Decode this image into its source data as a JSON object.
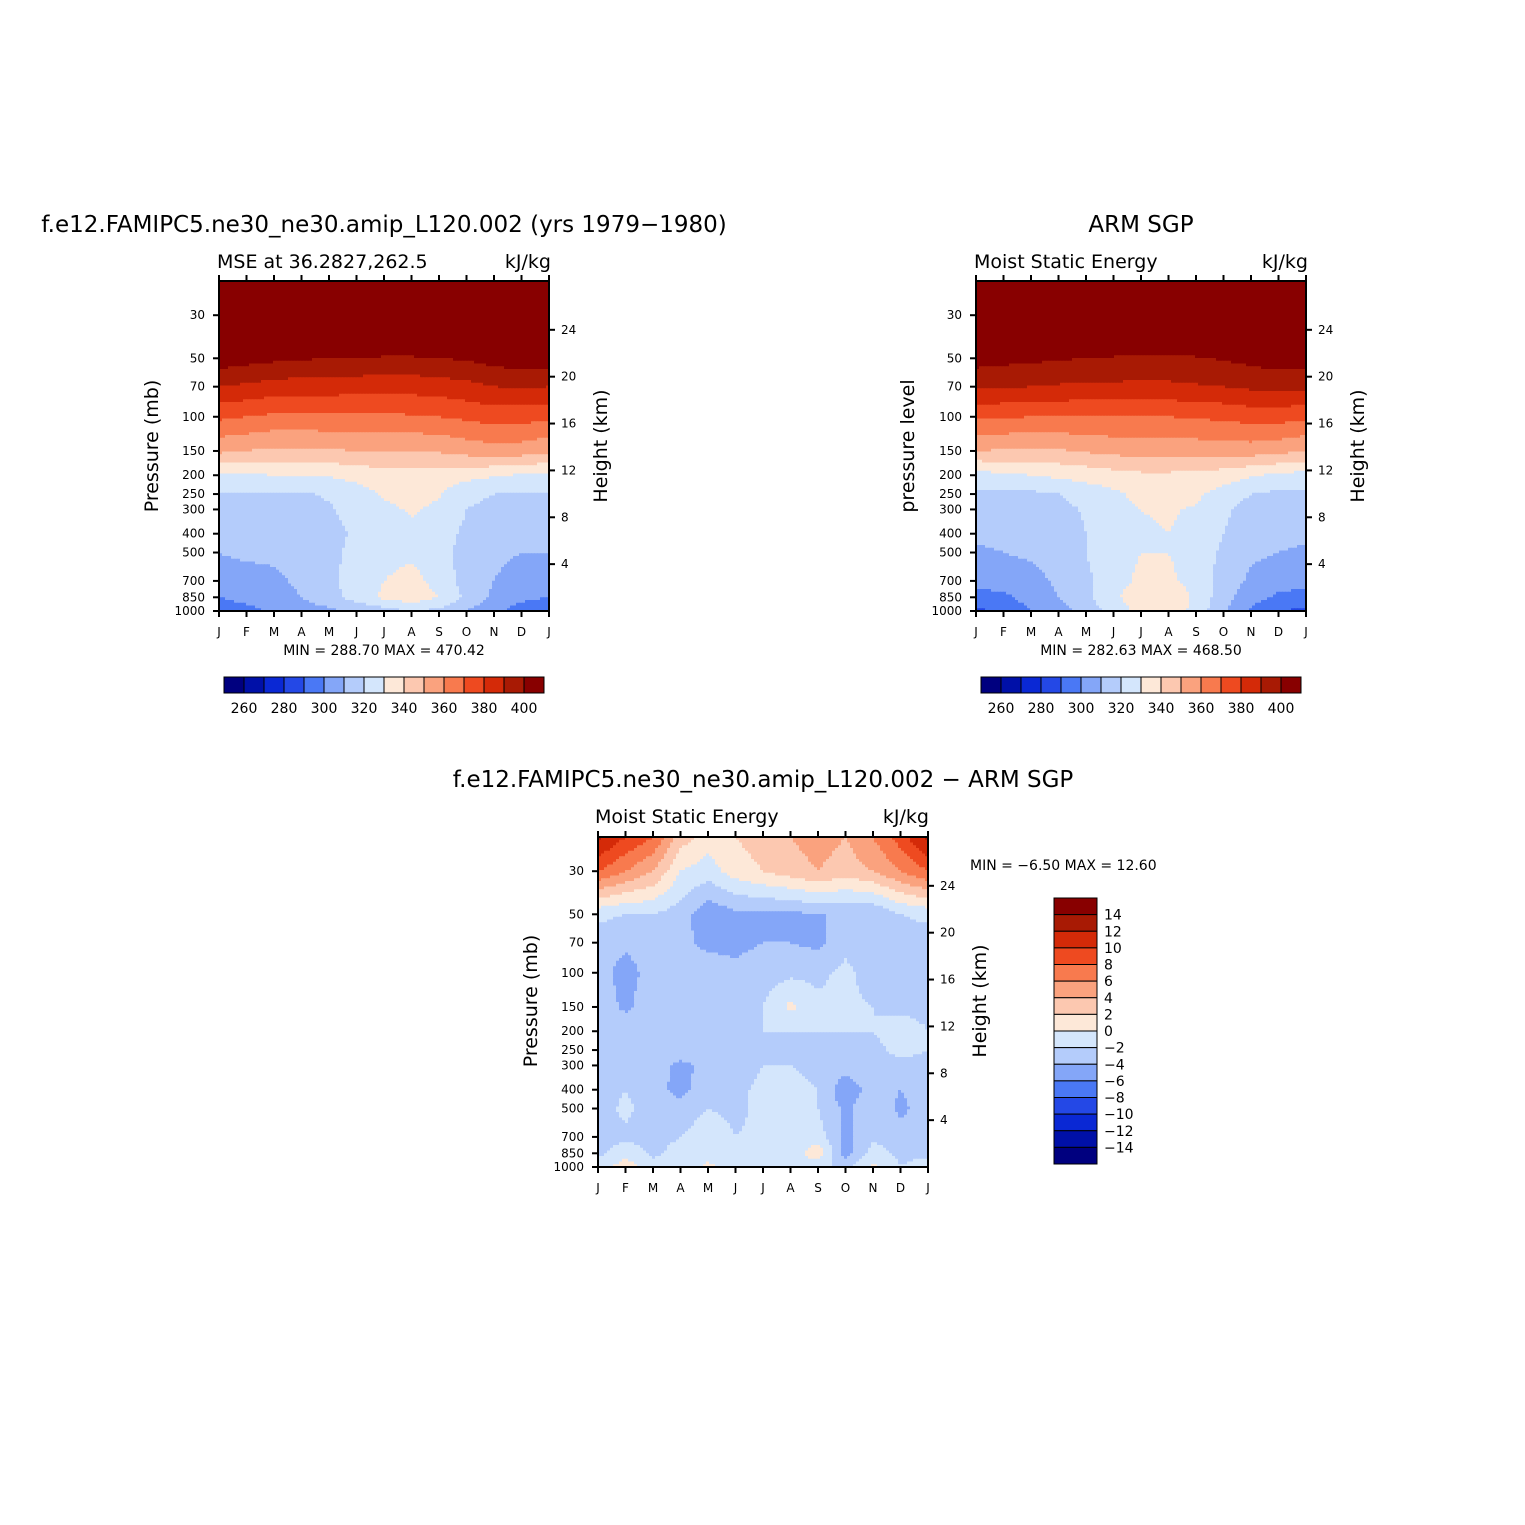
{
  "figure": {
    "title_model": "f.e12.FAMIPC5.ne30_ne30.amip_L120.002 (yrs 1979−1980)",
    "title_obs": "ARM SGP",
    "title_diff": "f.e12.FAMIPC5.ne30_ne30.amip_L120.002 − ARM SGP"
  },
  "colors": {
    "scale_main": [
      "#00007f",
      "#0010a8",
      "#0a28d4",
      "#2448e6",
      "#4a78f5",
      "#84a6f8",
      "#b4ccfb",
      "#d4e6fc",
      "#fde8d8",
      "#fcc8b0",
      "#faa27e",
      "#f87a4e",
      "#ee4a20",
      "#d42a08",
      "#a81a04",
      "#880000"
    ],
    "scale_diff": [
      "#880000",
      "#a81a04",
      "#d42a08",
      "#ee4a20",
      "#f87a4e",
      "#faa27e",
      "#fcc8b0",
      "#fde8d8",
      "#d4e6fc",
      "#b4ccfb",
      "#84a6f8",
      "#4a78f5",
      "#2448e6",
      "#0a28d4",
      "#0010a8",
      "#00007f"
    ]
  },
  "chart_data": [
    {
      "id": "model",
      "type": "heatmap",
      "subtitle_left": "MSE at 36.2827,262.5",
      "subtitle_right": "kJ/kg",
      "ylabel": "Pressure (mb)",
      "ylabel_right": "Height (km)",
      "x_ticks": [
        "J",
        "F",
        "M",
        "A",
        "M",
        "J",
        "J",
        "A",
        "S",
        "O",
        "N",
        "D",
        "J"
      ],
      "y_ticks": [
        30,
        50,
        70,
        100,
        150,
        200,
        250,
        300,
        400,
        500,
        700,
        850,
        1000
      ],
      "height_ticks": [
        24,
        20,
        16,
        12,
        8,
        4
      ],
      "ylim": [
        1000,
        20
      ],
      "stats_text": "MIN =  288.70  MAX =  470.42",
      "min": 288.7,
      "max": 470.42,
      "colorbar": {
        "levels": [
          250,
          260,
          270,
          280,
          290,
          300,
          310,
          320,
          330,
          340,
          350,
          360,
          370,
          380,
          390,
          400,
          410
        ],
        "labels": [
          "260",
          "280",
          "300",
          "320",
          "340",
          "360",
          "380",
          "400"
        ]
      },
      "levels": [
        1000,
        850,
        700,
        500,
        400,
        300,
        250,
        200,
        150,
        100,
        70,
        50,
        30,
        20
      ],
      "values": [
        [
          292,
          296,
          302,
          306,
          308,
          312,
          316,
          320,
          318,
          310,
          302,
          296,
          292
        ],
        [
          300,
          304,
          306,
          310,
          316,
          324,
          332,
          336,
          330,
          318,
          308,
          302,
          300
        ],
        [
          306,
          306,
          308,
          312,
          318,
          324,
          330,
          334,
          326,
          316,
          310,
          306,
          306
        ],
        [
          310,
          312,
          312,
          314,
          318,
          322,
          326,
          328,
          324,
          316,
          312,
          310,
          310
        ],
        [
          314,
          314,
          315,
          316,
          318,
          321,
          325,
          328,
          324,
          318,
          315,
          314,
          314
        ],
        [
          316,
          316,
          316,
          317,
          319,
          323,
          328,
          331,
          328,
          320,
          317,
          316,
          316
        ],
        [
          319,
          319,
          319,
          319,
          321,
          326,
          331,
          334,
          331,
          323,
          320,
          319,
          319
        ],
        [
          328,
          329,
          330,
          330,
          331,
          333,
          336,
          336,
          335,
          333,
          331,
          329,
          328
        ],
        [
          352,
          350,
          348,
          348,
          349,
          350,
          350,
          350,
          351,
          354,
          356,
          355,
          352
        ],
        [
          372,
          370,
          368,
          368,
          368,
          368,
          368,
          369,
          370,
          372,
          374,
          374,
          372
        ],
        [
          390,
          388,
          386,
          385,
          385,
          384,
          384,
          384,
          385,
          387,
          390,
          391,
          390
        ],
        [
          406,
          404,
          402,
          401,
          400,
          400,
          399,
          399,
          400,
          401,
          404,
          406,
          406
        ],
        [
          430,
          428,
          426,
          425,
          424,
          424,
          423,
          423,
          424,
          425,
          428,
          430,
          430
        ],
        [
          460,
          458,
          456,
          455,
          454,
          454,
          453,
          453,
          454,
          455,
          458,
          460,
          460
        ]
      ]
    },
    {
      "id": "obs",
      "type": "heatmap",
      "subtitle_left": "Moist Static Energy",
      "subtitle_right": "kJ/kg",
      "ylabel": "pressure level",
      "ylabel_right": "Height (km)",
      "x_ticks": [
        "J",
        "F",
        "M",
        "A",
        "M",
        "J",
        "J",
        "A",
        "S",
        "O",
        "N",
        "D",
        "J"
      ],
      "y_ticks": [
        30,
        50,
        70,
        100,
        150,
        200,
        250,
        300,
        400,
        500,
        700,
        850,
        1000
      ],
      "height_ticks": [
        24,
        20,
        16,
        12,
        8,
        4
      ],
      "ylim": [
        1000,
        20
      ],
      "stats_text": "MIN =  282.63  MAX =  468.50",
      "min": 282.63,
      "max": 468.5,
      "colorbar": {
        "levels": [
          250,
          260,
          270,
          280,
          290,
          300,
          310,
          320,
          330,
          340,
          350,
          360,
          370,
          380,
          390,
          400,
          410
        ],
        "labels": [
          "260",
          "280",
          "300",
          "320",
          "340",
          "360",
          "380",
          "400"
        ]
      },
      "levels": [
        1000,
        850,
        700,
        500,
        400,
        300,
        250,
        200,
        150,
        100,
        70,
        50,
        30,
        20
      ],
      "values": [
        [
          288,
          292,
          300,
          306,
          314,
          324,
          334,
          338,
          326,
          312,
          298,
          290,
          288
        ],
        [
          296,
          298,
          304,
          310,
          318,
          328,
          336,
          338,
          328,
          314,
          304,
          298,
          296
        ],
        [
          304,
          304,
          306,
          312,
          318,
          326,
          332,
          332,
          326,
          316,
          308,
          304,
          304
        ],
        [
          309,
          310,
          312,
          315,
          320,
          326,
          330,
          330,
          326,
          318,
          312,
          310,
          309
        ],
        [
          311,
          312,
          313,
          316,
          320,
          325,
          329,
          330,
          327,
          320,
          314,
          312,
          311
        ],
        [
          313,
          314,
          315,
          317,
          321,
          326,
          330,
          331,
          329,
          322,
          316,
          314,
          313
        ],
        [
          318,
          318,
          318,
          320,
          324,
          328,
          333,
          334,
          332,
          326,
          320,
          318,
          318
        ],
        [
          326,
          328,
          330,
          332,
          334,
          336,
          338,
          338,
          337,
          335,
          331,
          328,
          326
        ],
        [
          350,
          349,
          348,
          349,
          351,
          353,
          354,
          354,
          354,
          355,
          355,
          353,
          350
        ],
        [
          372,
          371,
          370,
          370,
          370,
          370,
          370,
          370,
          371,
          372,
          374,
          374,
          372
        ],
        [
          392,
          391,
          390,
          389,
          388,
          388,
          388,
          388,
          389,
          390,
          392,
          393,
          392
        ],
        [
          404,
          403,
          402,
          401,
          400,
          399,
          398,
          398,
          399,
          401,
          403,
          405,
          404
        ],
        [
          430,
          428,
          426,
          425,
          424,
          424,
          423,
          423,
          424,
          425,
          428,
          430,
          430
        ],
        [
          458,
          456,
          455,
          454,
          453,
          453,
          452,
          452,
          453,
          454,
          456,
          458,
          458
        ]
      ]
    },
    {
      "id": "diff",
      "type": "heatmap",
      "subtitle_left": "Moist Static Energy",
      "subtitle_right": "kJ/kg",
      "ylabel": "Pressure (mb)",
      "ylabel_right": "Height (km)",
      "x_ticks": [
        "J",
        "F",
        "M",
        "A",
        "M",
        "J",
        "J",
        "A",
        "S",
        "O",
        "N",
        "D",
        "J"
      ],
      "y_ticks": [
        30,
        50,
        70,
        100,
        150,
        200,
        250,
        300,
        400,
        500,
        700,
        850,
        1000
      ],
      "height_ticks": [
        24,
        20,
        16,
        12,
        8,
        4
      ],
      "ylim": [
        1000,
        20
      ],
      "stats_text": "MIN =   −6.50  MAX =   12.60",
      "min": -6.5,
      "max": 12.6,
      "colorbar": {
        "levels": [
          16,
          14,
          12,
          10,
          8,
          6,
          4,
          2,
          0,
          -2,
          -4,
          -6,
          -8,
          -10,
          -12,
          -14,
          -16
        ],
        "labels": [
          "14",
          "12",
          "10",
          "8",
          "6",
          "4",
          "2",
          "0",
          "−2",
          "−4",
          "−6",
          "−8",
          "−10",
          "−12",
          "−14"
        ]
      },
      "levels": [
        1000,
        850,
        700,
        500,
        400,
        300,
        250,
        200,
        150,
        100,
        70,
        50,
        30,
        20
      ],
      "values": [
        [
          -1.0,
          1.0,
          -1.0,
          -1.5,
          0.5,
          -1.0,
          -2.0,
          -1.0,
          -1.5,
          -2.5,
          0.5,
          -2.0,
          -1.0
        ],
        [
          -2.5,
          -0.5,
          -2.5,
          -1.0,
          -1.0,
          -2.0,
          -0.5,
          -1.5,
          1.5,
          -5.0,
          -1.0,
          -2.5,
          -2.5
        ],
        [
          -3.0,
          -2.5,
          -3.0,
          -2.0,
          -0.5,
          -2.0,
          -1.5,
          -0.5,
          -1.0,
          -4.5,
          -2.5,
          -3.0,
          -3.0
        ],
        [
          -3.0,
          -1.5,
          -3.0,
          -3.5,
          -2.0,
          -2.5,
          -1.5,
          -1.0,
          -2.0,
          -4.5,
          -2.5,
          -4.5,
          -3.0
        ],
        [
          -3.0,
          -2.0,
          -3.5,
          -4.5,
          -3.0,
          -2.5,
          -1.5,
          -1.0,
          -2.0,
          -5.5,
          -3.0,
          -4.0,
          -3.0
        ],
        [
          -2.5,
          -2.5,
          -3.0,
          -4.5,
          -3.5,
          -3.0,
          -2.0,
          -2.0,
          -3.0,
          -3.0,
          -2.5,
          -2.5,
          -2.5
        ],
        [
          -2.0,
          -2.5,
          -2.5,
          -3.0,
          -2.5,
          -2.0,
          -2.0,
          -2.0,
          -2.0,
          -2.5,
          -2.5,
          -1.5,
          -2.0
        ],
        [
          -2.0,
          -2.5,
          -2.5,
          -2.5,
          -2.0,
          -2.0,
          -2.0,
          -2.0,
          -2.0,
          -2.0,
          -2.0,
          -1.0,
          -2.0
        ],
        [
          -2.5,
          -4.5,
          -2.5,
          -2.0,
          -2.0,
          -2.5,
          -2.0,
          0.5,
          -1.5,
          -1.5,
          -2.0,
          -2.5,
          -2.5
        ],
        [
          -3.0,
          -5.0,
          -3.0,
          -3.0,
          -3.0,
          -3.5,
          -3.0,
          -2.5,
          -2.5,
          -1.5,
          -3.0,
          -3.0,
          -3.0
        ],
        [
          -3.0,
          -3.5,
          -3.0,
          -3.5,
          -4.5,
          -4.5,
          -4.0,
          -4.0,
          -4.5,
          -2.5,
          -4.0,
          -3.0,
          -3.0
        ],
        [
          -1.5,
          -2.0,
          -2.0,
          -3.0,
          -5.5,
          -4.5,
          -4.5,
          -4.5,
          -4.0,
          -4.0,
          -4.0,
          -2.0,
          -1.5
        ],
        [
          8.0,
          6.0,
          4.0,
          0.0,
          -1.0,
          1.0,
          2.0,
          3.0,
          4.0,
          3.0,
          4.0,
          6.0,
          8.0
        ],
        [
          12.6,
          10.0,
          8.0,
          3.0,
          1.0,
          2.0,
          3.0,
          4.0,
          5.0,
          4.0,
          6.0,
          9.0,
          12.6
        ]
      ]
    }
  ]
}
